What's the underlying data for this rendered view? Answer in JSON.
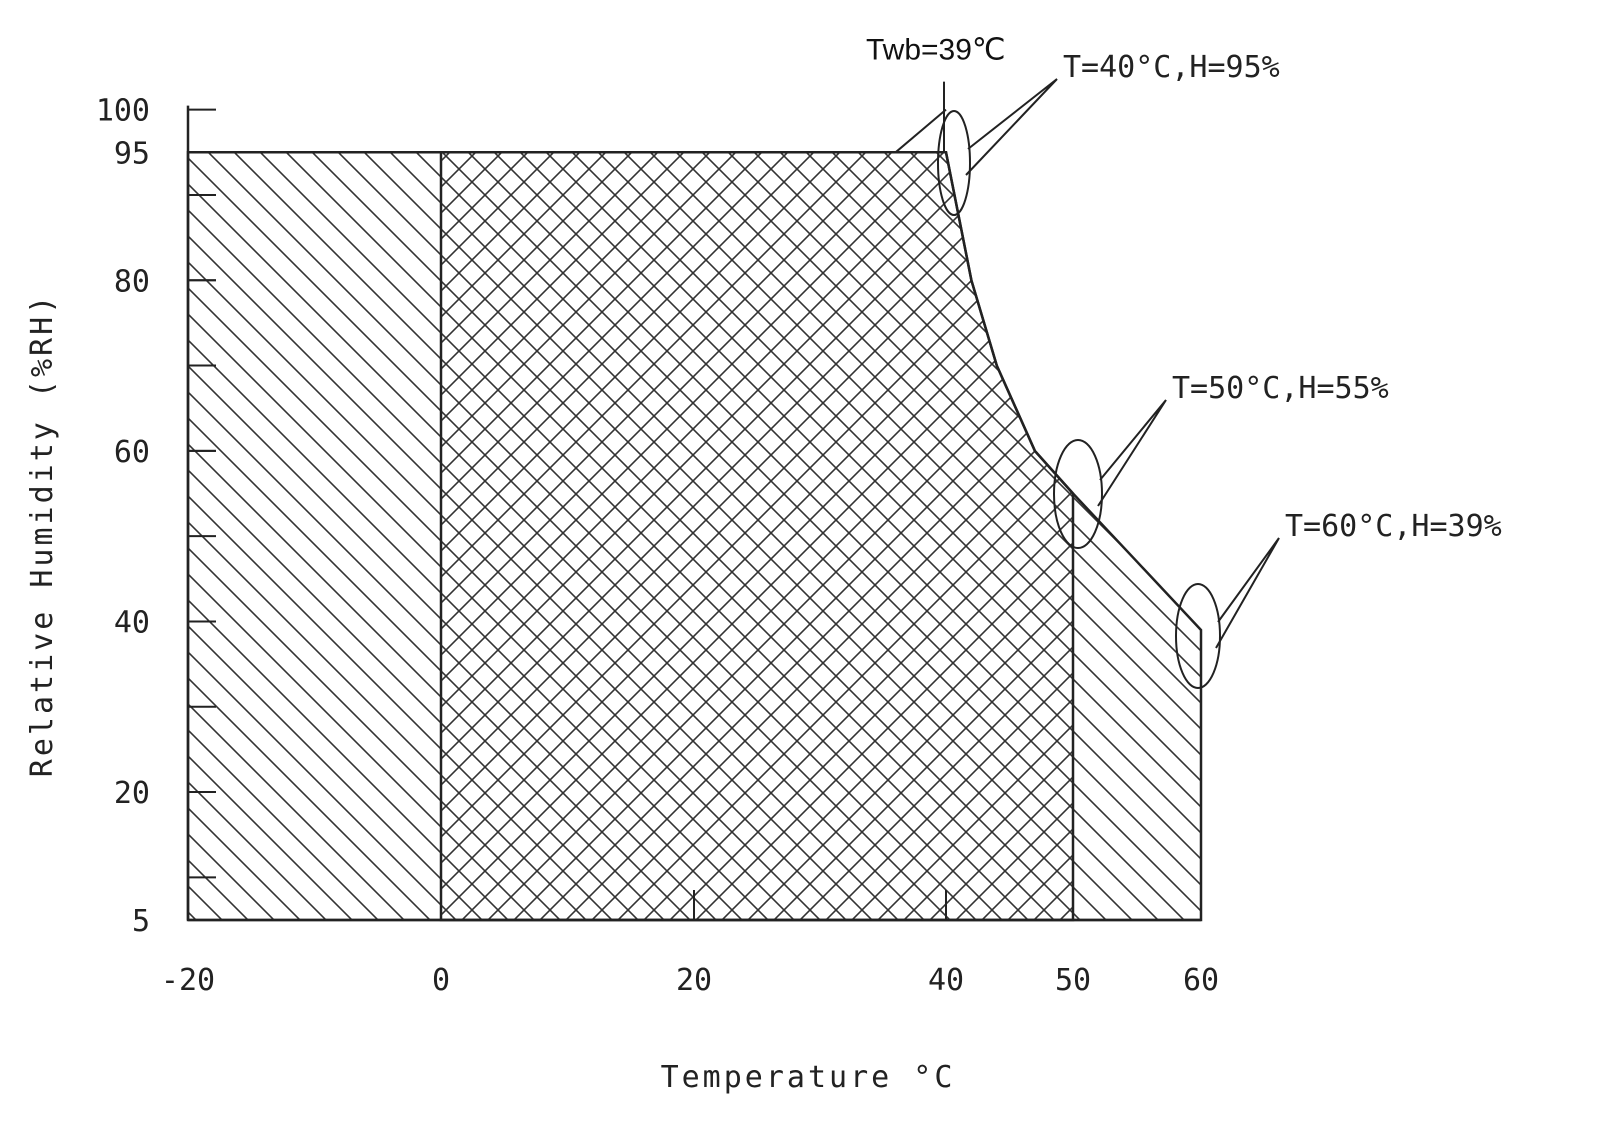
{
  "chart_data": {
    "type": "area",
    "xlabel": "Temperature °C",
    "ylabel": "Relative Humidity (%RH)",
    "xlim": [
      -20,
      60
    ],
    "ylim": [
      5,
      100
    ],
    "x_ticks": [
      -20,
      0,
      20,
      40,
      50,
      60
    ],
    "y_ticks": [
      5,
      20,
      40,
      60,
      80,
      95,
      100
    ],
    "x_tick_labels": [
      "-20",
      "0",
      "20",
      "40",
      "50",
      "60"
    ],
    "y_tick_labels": [
      "5",
      "20",
      "40",
      "60",
      "80",
      "95",
      "100"
    ],
    "regions": [
      {
        "hatch": "diagonal",
        "boundary": [
          [
            -20,
            5
          ],
          [
            -20,
            95
          ],
          [
            40,
            95
          ],
          [
            42,
            80
          ],
          [
            44,
            70
          ],
          [
            47,
            60
          ],
          [
            50,
            55
          ],
          [
            55,
            47
          ],
          [
            60,
            39
          ],
          [
            60,
            5
          ]
        ]
      },
      {
        "hatch": "cross",
        "boundary": [
          [
            0,
            5
          ],
          [
            0,
            95
          ],
          [
            40,
            95
          ],
          [
            42,
            80
          ],
          [
            44,
            70
          ],
          [
            47,
            60
          ],
          [
            50,
            55
          ],
          [
            50,
            5
          ]
        ]
      }
    ],
    "twb_line": {
      "x1": 36,
      "y1": 95,
      "x2": 40,
      "y2": 100
    },
    "annotations": [
      {
        "label": "Twb=39℃",
        "x": 40,
        "y": 100
      },
      {
        "label": "T=40°C,H=95%",
        "x": 40,
        "y": 95
      },
      {
        "label": "T=50°C,H=55%",
        "x": 50,
        "y": 55
      },
      {
        "label": "T=60°C,H=39%",
        "x": 60,
        "y": 39
      }
    ]
  }
}
